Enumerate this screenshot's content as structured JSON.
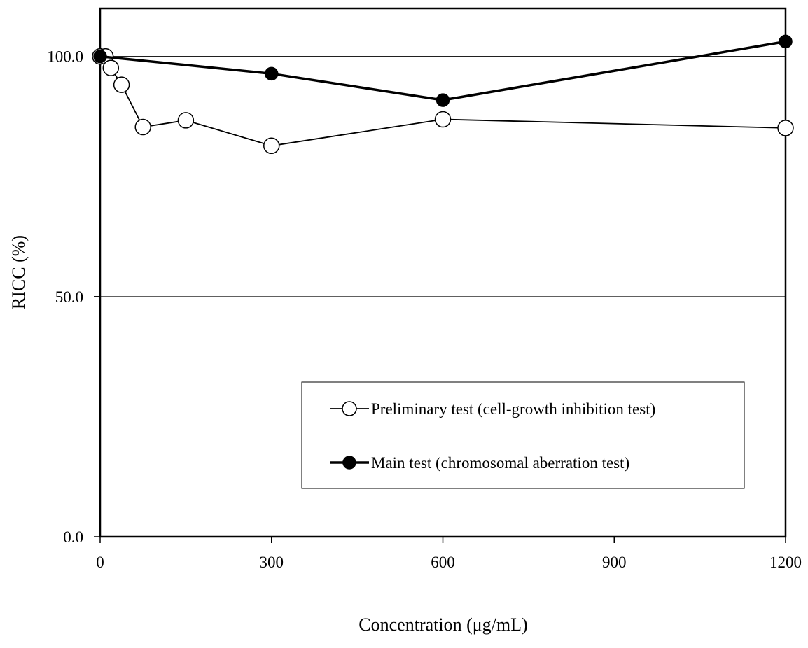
{
  "chart_data": {
    "type": "line",
    "title": "",
    "xlabel": "Concentration (μg/mL)",
    "ylabel": "RICC (%)",
    "xlim": [
      0,
      1200
    ],
    "ylim": [
      0,
      110
    ],
    "x_ticks": [
      0,
      300,
      600,
      900,
      1200
    ],
    "x_tick_labels": [
      "0",
      "300",
      "600",
      "900",
      "1200"
    ],
    "y_ticks": [
      0,
      50,
      100
    ],
    "y_tick_labels": [
      "0.0",
      "50.0",
      "100.0"
    ],
    "grid": "horizontal lines at 50.0 and 100.0",
    "legend_position": "lower-right",
    "series": [
      {
        "name": "Preliminary test (cell-growth inhibition test)",
        "marker": "open-circle",
        "line": "thin",
        "color": "#000000",
        "x": [
          0,
          9.38,
          18.75,
          37.5,
          75,
          150,
          300,
          600,
          1200
        ],
        "y": [
          100,
          100,
          97.6,
          94.1,
          85.3,
          86.7,
          81.4,
          86.9,
          85.1
        ]
      },
      {
        "name": "Main test (chromosomal aberration test)",
        "marker": "filled-circle",
        "line": "thick",
        "color": "#000000",
        "x": [
          0,
          300,
          600,
          1200
        ],
        "y": [
          100,
          96.4,
          90.9,
          103.1
        ]
      }
    ]
  }
}
